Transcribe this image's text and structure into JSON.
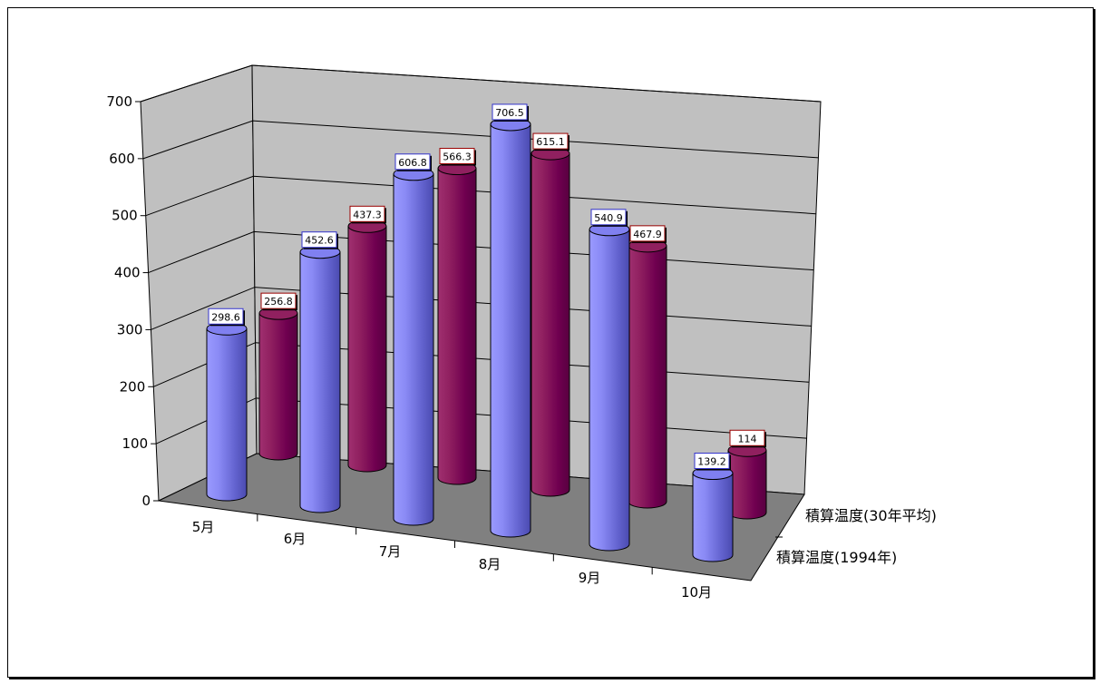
{
  "chart_data": {
    "type": "bar",
    "style": "3d-cylinder",
    "categories": [
      "5月",
      "6月",
      "7月",
      "8月",
      "9月",
      "10月"
    ],
    "series": [
      {
        "name": "積算温度(1994年)",
        "values": [
          298.6,
          452.6,
          606.8,
          706.5,
          540.9,
          139.2
        ],
        "color": "#7b7bea",
        "label_border": "#3333cc"
      },
      {
        "name": "積算温度(30年平均)",
        "values": [
          256.8,
          437.3,
          566.3,
          615.1,
          467.9,
          114.0
        ],
        "color": "#800060",
        "label_border": "#990000"
      }
    ],
    "y_ticks": [
      "0",
      "100",
      "200",
      "300",
      "400",
      "500",
      "600",
      "700"
    ],
    "ylim": [
      0,
      700
    ],
    "grid": true,
    "wall_color": "#c0c0c0",
    "floor_color": "#808080"
  }
}
